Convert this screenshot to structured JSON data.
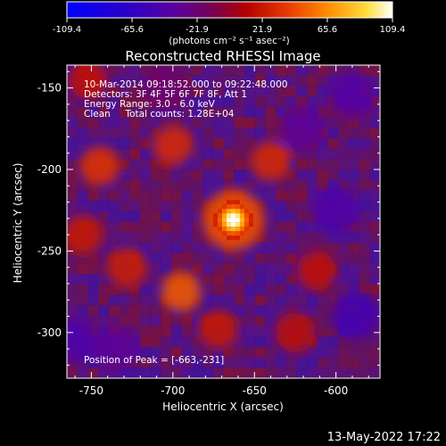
{
  "colorbar": {
    "ticks": [
      "-109.4",
      "-65.6",
      "-21.9",
      "21.9",
      "65.6",
      "109.4"
    ],
    "tick_values": [
      -109.4,
      -65.6,
      -21.9,
      21.9,
      65.6,
      109.4
    ],
    "range": [
      -109.4,
      109.4
    ],
    "unit_label": "(photons cm⁻² s⁻¹ asec⁻²)"
  },
  "title": "Reconstructed RHESSI Image",
  "annotations": [
    "10-Mar-2014 09:18:52.000 to 09:22:48.000",
    "Detectors: 3F 4F 5F 6F 7F 8F, Att 1",
    "Energy Range: 3.0 - 6.0 keV",
    "Clean     Total counts: 1.28E+04"
  ],
  "peak_label": "Position of Peak = [-663,-231]",
  "footer_date": "13-May-2022 17:22",
  "chart_data": {
    "type": "heatmap",
    "title": "Reconstructed RHESSI Image",
    "xlabel": "Heliocentric X (arcsec)",
    "ylabel": "Heliocentric Y (arcsec)",
    "xlim": [
      -765,
      -573
    ],
    "ylim": [
      -328,
      -136
    ],
    "x_ticks": [
      -750,
      -700,
      -650,
      -600
    ],
    "x_tick_labels": [
      "-750",
      "-700",
      "-650",
      "-600"
    ],
    "y_ticks": [
      -150,
      -200,
      -250,
      -300
    ],
    "y_tick_labels": [
      "-150",
      "-200",
      "-250",
      "-300"
    ],
    "colormap": "RHESSI flux colour table (blue-purple-red-orange-yellow-white)",
    "value_range": [
      -109.4,
      109.4
    ],
    "sources": [
      {
        "x": -663,
        "y": -231,
        "value": 109.4
      },
      {
        "x": -695,
        "y": -275,
        "value": 50
      },
      {
        "x": -700,
        "y": -185,
        "value": 32
      },
      {
        "x": -745,
        "y": -198,
        "value": 35
      },
      {
        "x": -640,
        "y": -195,
        "value": 30
      },
      {
        "x": -728,
        "y": -260,
        "value": 25
      },
      {
        "x": -612,
        "y": -262,
        "value": 20
      },
      {
        "x": -755,
        "y": -240,
        "value": 22
      },
      {
        "x": -752,
        "y": -145,
        "value": 20
      },
      {
        "x": -672,
        "y": -298,
        "value": 22
      },
      {
        "x": -625,
        "y": -300,
        "value": 18
      },
      {
        "x": -600,
        "y": -225,
        "value": -45
      },
      {
        "x": -588,
        "y": -290,
        "value": -50
      },
      {
        "x": -590,
        "y": -155,
        "value": -40
      },
      {
        "x": -620,
        "y": -175,
        "value": -35
      },
      {
        "x": -760,
        "y": -305,
        "value": -45
      },
      {
        "x": -735,
        "y": -310,
        "value": -35
      },
      {
        "x": -705,
        "y": -150,
        "value": -20
      }
    ],
    "peak": {
      "x": -663,
      "y": -231
    }
  }
}
